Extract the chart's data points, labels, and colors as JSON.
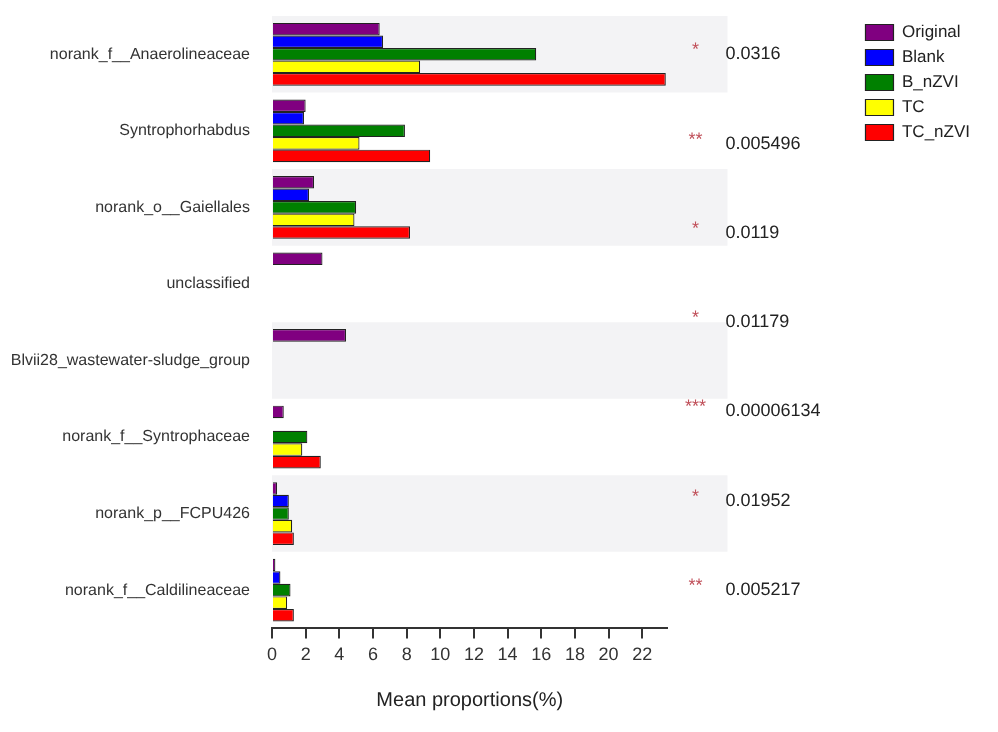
{
  "chart_data": {
    "type": "bar",
    "orientation": "horizontal",
    "xlabel": "Mean proportions(%)",
    "categories": [
      "norank_f__Anaerolineaceae",
      "Syntrophorhabdus",
      "norank_o__Gaiellales",
      "unclassified",
      "Blvii28_wastewater-sludge_group",
      "norank_f__Syntrophaceae",
      "norank_p__FCPU426",
      "norank_f__Caldilineaceae"
    ],
    "series": [
      {
        "name": "Original",
        "color": "#800080",
        "values": [
          6.4,
          2.0,
          2.5,
          3.0,
          4.4,
          0.7,
          0.3,
          0.2
        ]
      },
      {
        "name": "Blank",
        "color": "#0000ff",
        "values": [
          6.6,
          1.9,
          2.2,
          null,
          null,
          null,
          1.0,
          0.5
        ]
      },
      {
        "name": "B_nZVI",
        "color": "#008000",
        "values": [
          15.7,
          7.9,
          5.0,
          null,
          null,
          2.1,
          1.0,
          1.1
        ]
      },
      {
        "name": "TC",
        "color": "#ffff00",
        "values": [
          8.8,
          5.2,
          4.9,
          null,
          null,
          1.8,
          1.2,
          0.9
        ]
      },
      {
        "name": "TC_nZVI",
        "color": "#ff0000",
        "values": [
          23.4,
          9.4,
          8.2,
          null,
          null,
          2.9,
          1.3,
          1.3
        ]
      }
    ],
    "xlim": [
      0,
      23.5
    ],
    "xticks": [
      0,
      2,
      4,
      6,
      8,
      10,
      12,
      14,
      16,
      18,
      20,
      22
    ],
    "grid": false,
    "legend": "top right",
    "annotations": [
      "*",
      "0.0316",
      "**",
      "0.005496",
      "*",
      "0.0119",
      "*",
      "0.01179",
      "***",
      "0.00006134",
      "*",
      "0.01952",
      "**",
      "0.005217"
    ]
  }
}
